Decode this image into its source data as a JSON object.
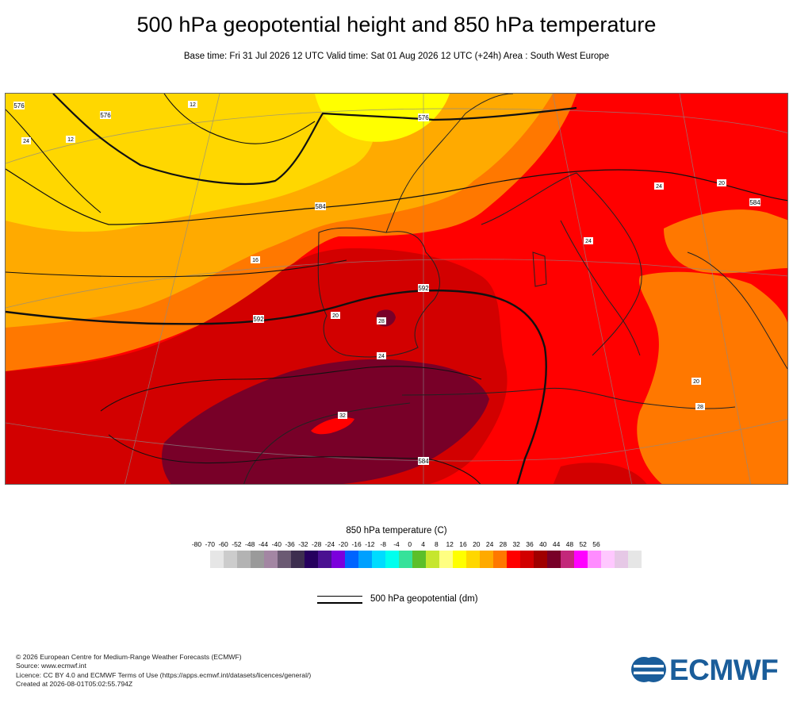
{
  "header": {
    "title": "500 hPa geopotential height and 850 hPa temperature",
    "subtitle": "Base time: Fri 31 Jul 2026 12 UTC Valid time: Sat 01 Aug 2026 12 UTC (+24h) Area : South West Europe"
  },
  "map": {
    "contour_labels": [
      "576",
      "576",
      "584",
      "592",
      "592",
      "584",
      "576",
      "584"
    ],
    "temperature_labels": [
      "12",
      "12",
      "16",
      "20",
      "24",
      "28",
      "24",
      "20",
      "20",
      "24",
      "28",
      "32",
      "24"
    ]
  },
  "colorbar": {
    "title": "850 hPa temperature (C)",
    "ticks": [
      "-80",
      "-70",
      "-60",
      "-52",
      "-48",
      "-44",
      "-40",
      "-36",
      "-32",
      "-28",
      "-24",
      "-20",
      "-16",
      "-12",
      "-8",
      "-4",
      "0",
      "4",
      "8",
      "12",
      "16",
      "20",
      "24",
      "28",
      "32",
      "36",
      "40",
      "44",
      "48",
      "52",
      "56"
    ],
    "colors": [
      "#e6e6e6",
      "#cccccc",
      "#b3b3b3",
      "#9a9a9a",
      "#a386a3",
      "#6b5a73",
      "#3d2e4f",
      "#26005e",
      "#4a1191",
      "#7b00dc",
      "#0064ff",
      "#00a0ff",
      "#00dcff",
      "#00ffee",
      "#36e29a",
      "#5cbf2a",
      "#c6e62e",
      "#ffff82",
      "#ffff00",
      "#ffd700",
      "#ffaa00",
      "#ff7800",
      "#ff0000",
      "#d20000",
      "#a00000",
      "#780028",
      "#c3287a",
      "#ff00ff",
      "#ff8cff",
      "#ffc8ff",
      "#e6c8e6",
      "#e6e6e6"
    ]
  },
  "legend": {
    "geopotential_label": "500 hPa geopotential (dm)"
  },
  "footer": {
    "lines": [
      "© 2026 European Centre for Medium-Range Weather Forecasts (ECMWF)",
      "Source: www.ecmwf.int",
      "Licence: CC BY 4.0 and ECMWF Terms of Use (https://apps.ecmwf.int/datasets/licences/general/)",
      "Created at 2026-08-01T05:02:55.794Z"
    ]
  },
  "logo": {
    "text": "ECMWF",
    "color": "#1a5d9a"
  }
}
